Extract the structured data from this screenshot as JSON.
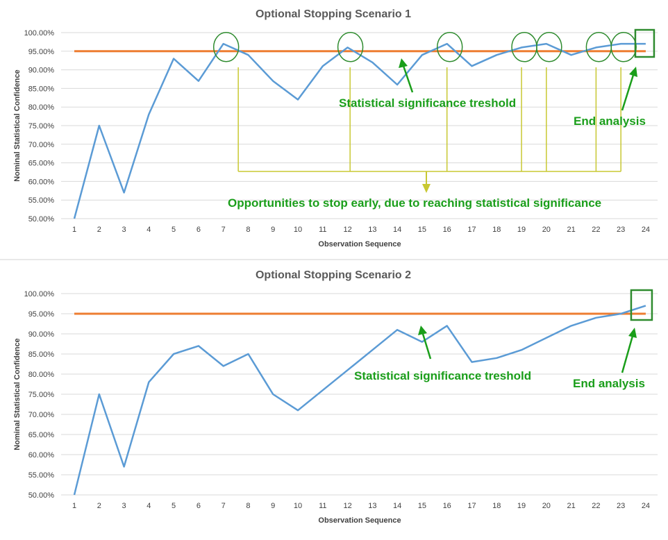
{
  "chart_data": [
    {
      "type": "line",
      "title": "Optional Stopping Scenario 1",
      "xlabel": "Observation Sequence",
      "ylabel": "Nominal Statistical Confidence",
      "ylim": [
        0.5,
        1.0
      ],
      "yticks": [
        "50.00%",
        "55.00%",
        "60.00%",
        "65.00%",
        "70.00%",
        "75.00%",
        "80.00%",
        "85.00%",
        "90.00%",
        "95.00%",
        "100.00%"
      ],
      "x": [
        1,
        2,
        3,
        4,
        5,
        6,
        7,
        8,
        9,
        10,
        11,
        12,
        13,
        14,
        15,
        16,
        17,
        18,
        19,
        20,
        21,
        22,
        23,
        24
      ],
      "grid": true,
      "series": [
        {
          "values": [
            0.5,
            0.75,
            0.57,
            0.78,
            0.93,
            0.87,
            0.97,
            0.94,
            0.87,
            0.82,
            0.91,
            0.96,
            0.92,
            0.86,
            0.94,
            0.97,
            0.91,
            0.94,
            0.96,
            0.97,
            0.94,
            0.96,
            0.97,
            0.97
          ],
          "color": "#5b9bd5"
        },
        {
          "values": [
            0.95,
            0.95,
            0.95,
            0.95,
            0.95,
            0.95,
            0.95,
            0.95,
            0.95,
            0.95,
            0.95,
            0.95,
            0.95,
            0.95,
            0.95,
            0.95,
            0.95,
            0.95,
            0.95,
            0.95,
            0.95,
            0.95,
            0.95,
            0.95
          ],
          "color": "#ed7d31"
        }
      ],
      "highlighted_points": [
        7,
        12,
        16,
        19,
        20,
        22,
        23
      ],
      "end_point": 24,
      "annotations": {
        "threshold": "Statistical significance treshold",
        "end": "End analysis",
        "opportunities": "Opportunities to stop early, due to reaching statistical significance"
      }
    },
    {
      "type": "line",
      "title": "Optional Stopping Scenario 2",
      "xlabel": "Observation Sequence",
      "ylabel": "Nominal Statistical Confidence",
      "ylim": [
        0.5,
        1.0
      ],
      "yticks": [
        "50.00%",
        "55.00%",
        "60.00%",
        "65.00%",
        "70.00%",
        "75.00%",
        "80.00%",
        "85.00%",
        "90.00%",
        "95.00%",
        "100.00%"
      ],
      "x": [
        1,
        2,
        3,
        4,
        5,
        6,
        7,
        8,
        9,
        10,
        11,
        12,
        13,
        14,
        15,
        16,
        17,
        18,
        19,
        20,
        21,
        22,
        23,
        24
      ],
      "grid": true,
      "series": [
        {
          "values": [
            0.5,
            0.75,
            0.57,
            0.78,
            0.85,
            0.87,
            0.82,
            0.85,
            0.75,
            0.71,
            0.76,
            0.81,
            0.86,
            0.91,
            0.88,
            0.92,
            0.83,
            0.84,
            0.86,
            0.89,
            0.92,
            0.94,
            0.95,
            0.97
          ],
          "color": "#5b9bd5"
        },
        {
          "values": [
            0.95,
            0.95,
            0.95,
            0.95,
            0.95,
            0.95,
            0.95,
            0.95,
            0.95,
            0.95,
            0.95,
            0.95,
            0.95,
            0.95,
            0.95,
            0.95,
            0.95,
            0.95,
            0.95,
            0.95,
            0.95,
            0.95,
            0.95,
            0.95
          ],
          "color": "#ed7d31"
        }
      ],
      "end_point": 24,
      "annotations": {
        "threshold": "Statistical significance treshold",
        "end": "End analysis"
      }
    }
  ],
  "colors": {
    "series": "#5b9bd5",
    "threshold": "#ed7d31",
    "annotation": "#1a9e1a",
    "circle": "#2e8b2e",
    "bracket": "#c8c832"
  }
}
